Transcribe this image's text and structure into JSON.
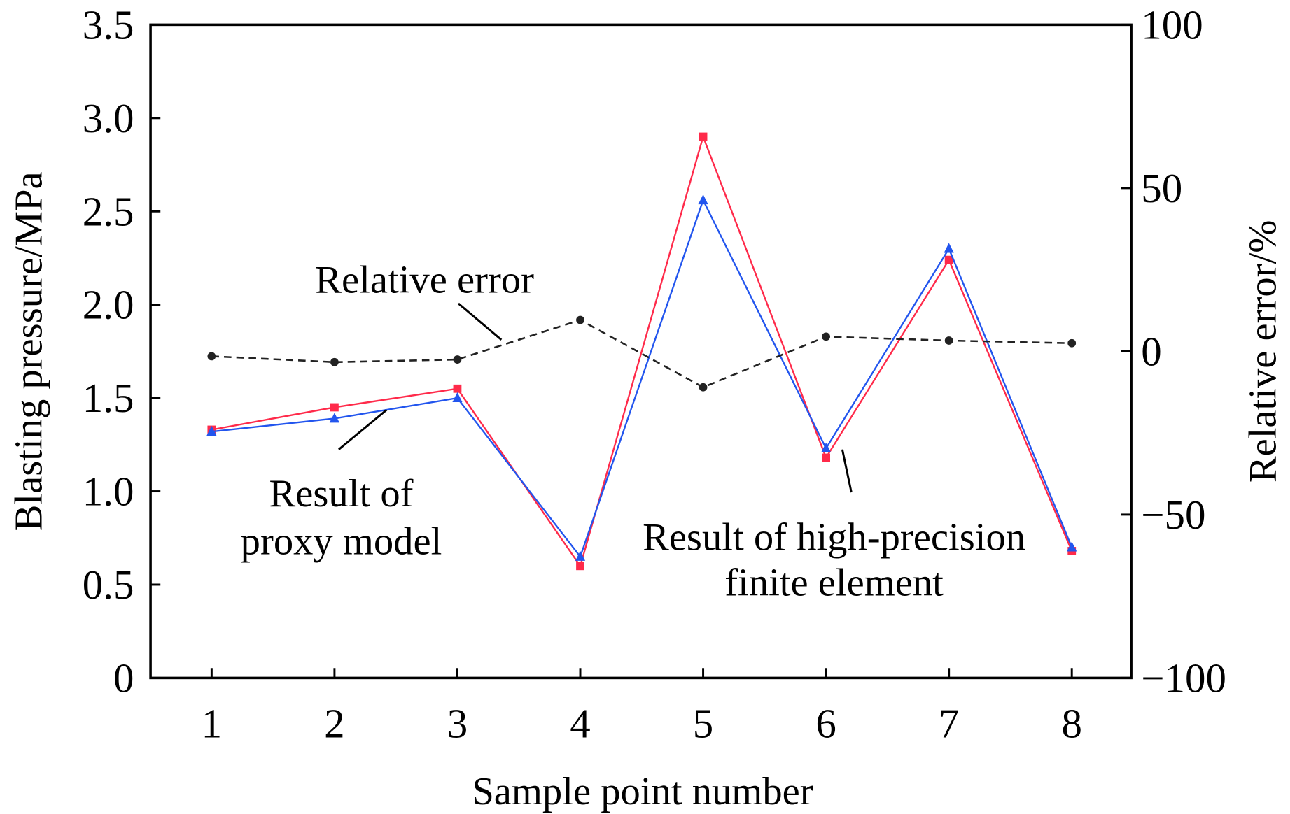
{
  "chart_data": {
    "type": "line",
    "xlabel": "Sample point number",
    "ylabel": "Blasting pressure/MPa",
    "y2label": "Relative error/%",
    "x": [
      1,
      2,
      3,
      4,
      5,
      6,
      7,
      8
    ],
    "xticks": [
      "1",
      "2",
      "3",
      "4",
      "5",
      "6",
      "7",
      "8"
    ],
    "ylim": [
      0,
      3.5
    ],
    "yticks": [
      "0",
      "0.5",
      "1.0",
      "1.5",
      "2.0",
      "2.5",
      "3.0",
      "3.5"
    ],
    "y2lim": [
      -100,
      100
    ],
    "y2ticks": [
      "−100",
      "−50",
      "0",
      "50",
      "100"
    ],
    "grid": false,
    "series": [
      {
        "name": "Result of high-precision finite element",
        "axis": "left",
        "color": "#ff2a4a",
        "marker": "square",
        "values": [
          1.33,
          1.45,
          1.55,
          0.6,
          2.9,
          1.18,
          2.24,
          0.68
        ]
      },
      {
        "name": "Result of proxy model",
        "axis": "left",
        "color": "#2255ee",
        "marker": "triangle",
        "values": [
          1.32,
          1.39,
          1.5,
          0.65,
          2.56,
          1.23,
          2.3,
          0.7
        ]
      },
      {
        "name": "Relative error",
        "axis": "right",
        "color": "#222222",
        "marker": "circle",
        "dashed": true,
        "values": [
          -1.5,
          -3.3,
          -2.5,
          9.6,
          -11.0,
          4.5,
          3.3,
          2.5
        ]
      }
    ],
    "annotations": {
      "relative_error": "Relative error",
      "proxy_line1": "Result of",
      "proxy_line2": "proxy model",
      "fe_line1": "Result of high-precision",
      "fe_line2": "finite element"
    }
  }
}
